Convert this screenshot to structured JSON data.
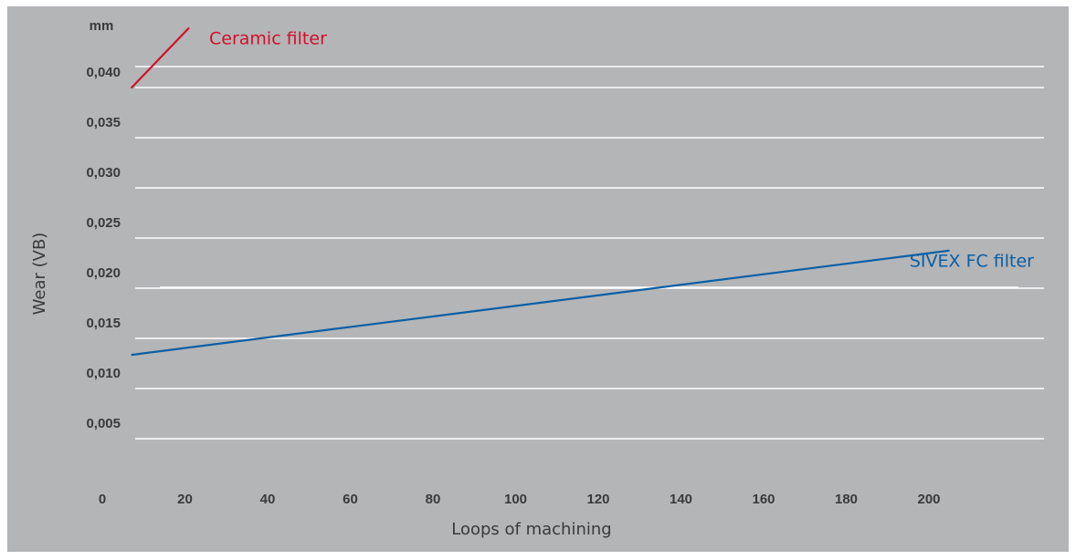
{
  "chart_data": {
    "type": "line",
    "title": "",
    "xlabel": "Loops of machining",
    "ylabel": "Wear (VB)",
    "y_unit": "mm",
    "xlim": [
      0,
      205
    ],
    "ylim": [
      0,
      0.045
    ],
    "x_ticks": [
      {
        "value": 0,
        "label": "0"
      },
      {
        "value": 20,
        "label": "20"
      },
      {
        "value": 40,
        "label": "40"
      },
      {
        "value": 60,
        "label": "60"
      },
      {
        "value": 80,
        "label": "80"
      },
      {
        "value": 100,
        "label": "100"
      },
      {
        "value": 120,
        "label": "120"
      },
      {
        "value": 140,
        "label": "140"
      },
      {
        "value": 160,
        "label": "160"
      },
      {
        "value": 180,
        "label": "180"
      },
      {
        "value": 200,
        "label": "200"
      }
    ],
    "y_ticks": [
      {
        "value": 0.005,
        "label": "0,005"
      },
      {
        "value": 0.01,
        "label": "0,010"
      },
      {
        "value": 0.015,
        "label": "0,015"
      },
      {
        "value": 0.02,
        "label": "0,020"
      },
      {
        "value": 0.025,
        "label": "0,025"
      },
      {
        "value": 0.03,
        "label": "0,030"
      },
      {
        "value": 0.035,
        "label": "0,035"
      },
      {
        "value": 0.04,
        "label": "0,040"
      }
    ],
    "grid": true,
    "background_color": "#b3b5b7",
    "grid_color": "#ffffff",
    "series": [
      {
        "name": "SIVEX FC filter",
        "color": "#0a5fa5",
        "x": [
          7,
          205
        ],
        "y": [
          0.0119,
          0.0223
        ]
      },
      {
        "name": "Ceramic filter",
        "color": "#d20f2a",
        "x": [
          7,
          21
        ],
        "y": [
          0.0385,
          0.0445
        ]
      }
    ]
  }
}
